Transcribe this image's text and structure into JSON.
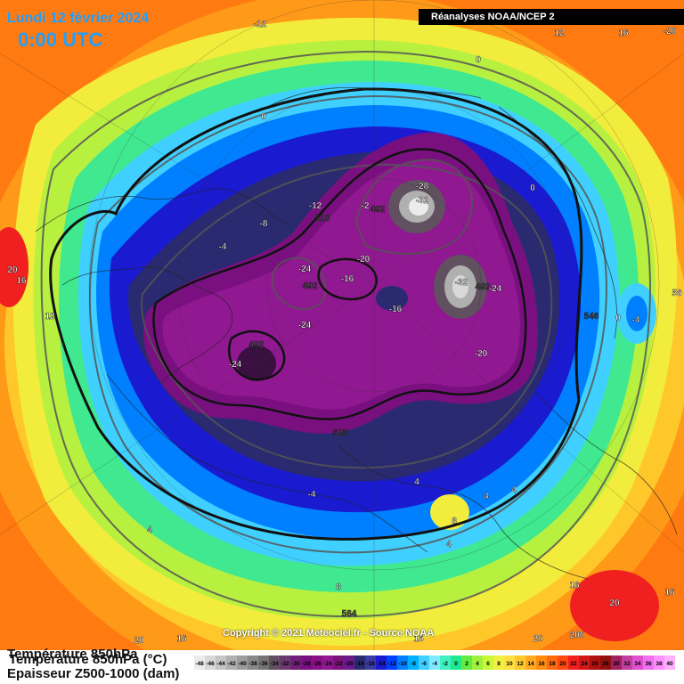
{
  "header": {
    "date": "Lundi 12 février 2024",
    "time": "0:00 UTC",
    "source": "Réanalyses NOAA/NCEP 2"
  },
  "copyright": "Copyright © 2021 Meteociel.fr - Source NOAA",
  "legend": {
    "temperature_label": "Température 850hPa (°C)",
    "temperature_label_overlap": "Température 850hPa",
    "thickness_label": "Epaisseur Z500-1000 (dam)",
    "ticks": [
      "-48",
      "-46",
      "-44",
      "-42",
      "-40",
      "-38",
      "-36",
      "-34",
      "-32",
      "-30",
      "-28",
      "-26",
      "-24",
      "-22",
      "-20",
      "-18",
      "-16",
      "-14",
      "-12",
      "-10",
      "-8",
      "-6",
      "-4",
      "-2",
      "0",
      "2",
      "4",
      "6",
      "8",
      "10",
      "12",
      "14",
      "16",
      "18",
      "20",
      "22",
      "24",
      "26",
      "28",
      "30",
      "32",
      "34",
      "36",
      "38",
      "40"
    ],
    "colors": [
      "#ececec",
      "#d8d8d8",
      "#c4c4c4",
      "#b0b0b0",
      "#9c9c9c",
      "#888888",
      "#747474",
      "#605060",
      "#6a3a70",
      "#72207a",
      "#7a1080",
      "#8a1088",
      "#901890",
      "#7a147a",
      "#6a1a8a",
      "#2a2a70",
      "#3a3aa0",
      "#1a1ad0",
      "#0040ff",
      "#0080ff",
      "#00b0ff",
      "#40d0ff",
      "#80e8ff",
      "#40f0c0",
      "#20e890",
      "#60ec40",
      "#a0f040",
      "#c8f838",
      "#f0f040",
      "#ffe040",
      "#ffc830",
      "#ffaa20",
      "#ff8c10",
      "#ff6a10",
      "#ff4a10",
      "#f02020",
      "#d01818",
      "#b01010",
      "#901010",
      "#a02060",
      "#c040a0",
      "#e050d0",
      "#f070f0",
      "#ff90ff",
      "#ffb0ff"
    ]
  },
  "map_labels": [
    {
      "text": "-12"
    },
    {
      "text": "12"
    },
    {
      "text": "16"
    },
    {
      "text": "-20"
    },
    {
      "text": "0"
    },
    {
      "text": "0"
    },
    {
      "text": "0"
    },
    {
      "text": "-12"
    },
    {
      "text": "-8"
    },
    {
      "text": "-4"
    },
    {
      "text": "510"
    },
    {
      "text": "-28"
    },
    {
      "text": "-32"
    },
    {
      "text": "-2"
    },
    {
      "text": "492"
    },
    {
      "text": "-20"
    },
    {
      "text": "-24"
    },
    {
      "text": "492"
    },
    {
      "text": "-16"
    },
    {
      "text": "-16"
    },
    {
      "text": "-32"
    },
    {
      "text": "492"
    },
    {
      "text": "-24"
    },
    {
      "text": "-24"
    },
    {
      "text": "492"
    },
    {
      "text": "-24"
    },
    {
      "text": "-20"
    },
    {
      "text": "528"
    },
    {
      "text": "20"
    },
    {
      "text": "16"
    },
    {
      "text": "12"
    },
    {
      "text": "0"
    },
    {
      "text": "-4"
    },
    {
      "text": "546"
    },
    {
      "text": "56"
    },
    {
      "text": "-4"
    },
    {
      "text": "4"
    },
    {
      "text": "4"
    },
    {
      "text": "4"
    },
    {
      "text": "4"
    },
    {
      "text": "8"
    },
    {
      "text": "4"
    },
    {
      "text": "8"
    },
    {
      "text": "564"
    },
    {
      "text": "16"
    },
    {
      "text": "20"
    },
    {
      "text": "16"
    },
    {
      "text": "20"
    },
    {
      "text": "200"
    },
    {
      "text": "16"
    },
    {
      "text": "20"
    },
    {
      "text": "16"
    }
  ]
}
